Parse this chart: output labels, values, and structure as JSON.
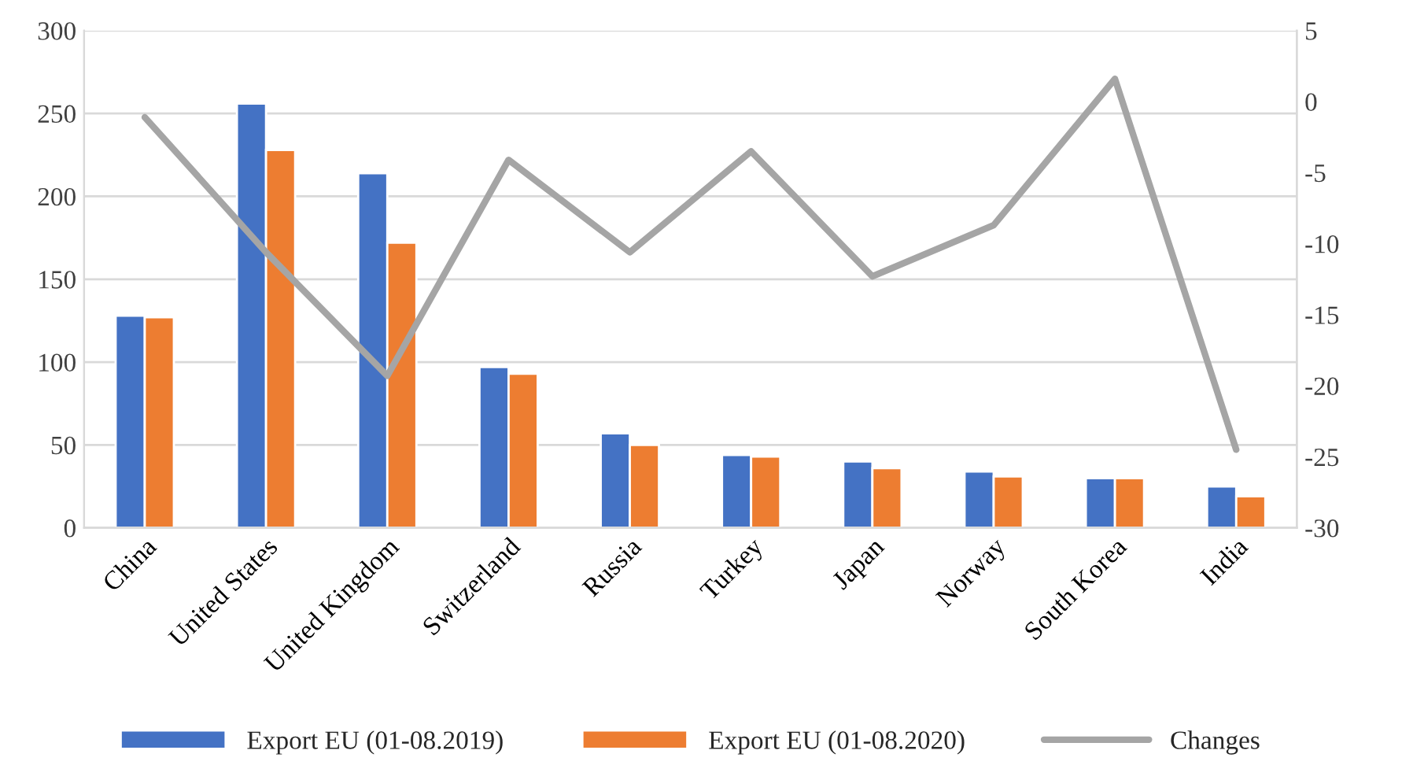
{
  "chart_data": {
    "type": "bar",
    "categories": [
      "China",
      "United States",
      "United Kingdom",
      "Switzerland",
      "Russia",
      "Turkey",
      "Japan",
      "Norway",
      "South Korea",
      "India"
    ],
    "series": [
      {
        "name": "Export EU (01-08.2019)",
        "color": "#4472c4",
        "values": [
          128,
          256,
          214,
          97,
          57,
          44,
          40,
          34,
          30,
          25
        ]
      },
      {
        "name": "Export EU (01-08.2020)",
        "color": "#ed7d31",
        "values": [
          127,
          228,
          172,
          93,
          50,
          43,
          36,
          31,
          30,
          19
        ]
      },
      {
        "name": "Changes",
        "type": "line",
        "axis": "y2",
        "color": "#a5a5a5",
        "values": [
          -1.1,
          -10.6,
          -19.3,
          -4.1,
          -10.6,
          -3.5,
          -12.3,
          -8.7,
          1.6,
          -24.5
        ]
      }
    ],
    "ylim": [
      0,
      300
    ],
    "yticks": [
      0,
      50,
      100,
      150,
      200,
      250,
      300
    ],
    "y2lim": [
      -30,
      5
    ],
    "y2ticks": [
      -30,
      -25,
      -20,
      -15,
      -10,
      -5,
      0,
      5
    ],
    "grid": "y",
    "legend": "bottom",
    "marker": "none",
    "line_style": "solid"
  }
}
